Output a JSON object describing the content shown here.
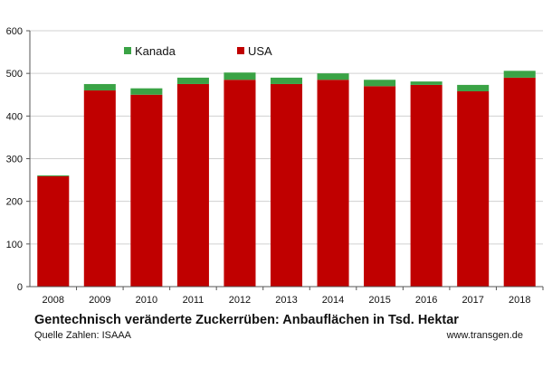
{
  "chart_data": {
    "type": "bar",
    "stacked": true,
    "categories": [
      "2008",
      "2009",
      "2010",
      "2011",
      "2012",
      "2013",
      "2014",
      "2015",
      "2016",
      "2017",
      "2018"
    ],
    "series": [
      {
        "name": "USA",
        "color": "#c00000",
        "values": [
          259,
          460,
          450,
          475,
          485,
          475,
          485,
          470,
          473,
          458,
          490
        ]
      },
      {
        "name": "Kanada",
        "color": "#3aa345",
        "values": [
          2,
          15,
          15,
          15,
          17,
          15,
          15,
          15,
          8,
          15,
          16
        ]
      }
    ],
    "yticks": [
      "0",
      "100",
      "200",
      "300",
      "400",
      "500",
      "600"
    ],
    "ylim": [
      0,
      600
    ],
    "grid": true,
    "legend": {
      "position": "top-left",
      "order": [
        "Kanada",
        "USA"
      ]
    }
  },
  "caption": {
    "title": "Gentechnisch veränderte Zuckerrüben: Anbauflächen in Tsd. Hektar",
    "source": "Quelle Zahlen: ISAAA",
    "site": "www.transgen.de"
  }
}
